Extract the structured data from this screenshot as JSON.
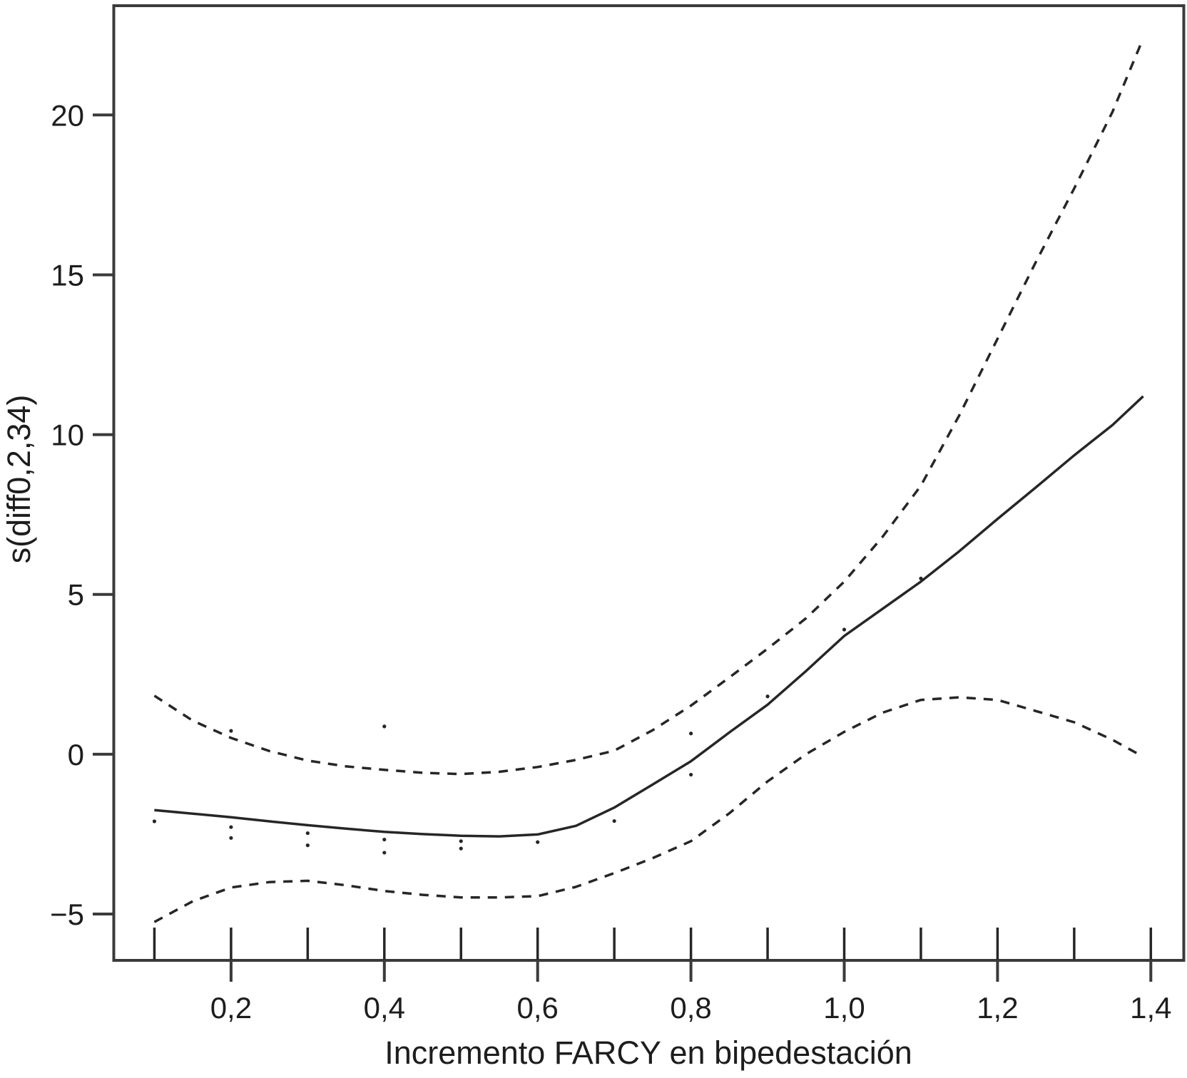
{
  "figure": {
    "kind": "statistical-smooth-plot",
    "background": "#ffffff"
  },
  "chart_data": {
    "type": "line",
    "title": "",
    "xlabel": "Incremento FARCY en bipedestación",
    "ylabel": "s(diff0,2,34)",
    "xlim": [
      0.047,
      1.443
    ],
    "ylim": [
      -6.45,
      23.42
    ],
    "grid": false,
    "legend_position": "none",
    "frame_box": true,
    "line_color": "#262626",
    "axis_color": "#3a3a3a",
    "x_ticks": [
      {
        "v": 0.2,
        "label": "0,2"
      },
      {
        "v": 0.4,
        "label": "0,4"
      },
      {
        "v": 0.6,
        "label": "0,6"
      },
      {
        "v": 0.8,
        "label": "0,8"
      },
      {
        "v": 1.0,
        "label": "1,0"
      },
      {
        "v": 1.2,
        "label": "1,2"
      },
      {
        "v": 1.4,
        "label": "1,4"
      }
    ],
    "y_ticks": [
      {
        "v": -5,
        "label": "−5"
      },
      {
        "v": 0,
        "label": "0"
      },
      {
        "v": 5,
        "label": "5"
      },
      {
        "v": 10,
        "label": "10"
      },
      {
        "v": 15,
        "label": "15"
      },
      {
        "v": 20,
        "label": "20"
      }
    ],
    "rug_x": [
      0.1,
      0.2,
      0.3,
      0.4,
      0.5,
      0.6,
      0.7,
      0.8,
      0.9,
      1.0,
      1.1,
      1.2,
      1.3,
      1.4
    ],
    "series": [
      {
        "name": "fit",
        "style": "solid",
        "points": [
          [
            0.1,
            -1.75
          ],
          [
            0.15,
            -1.86
          ],
          [
            0.2,
            -1.97
          ],
          [
            0.25,
            -2.1
          ],
          [
            0.3,
            -2.22
          ],
          [
            0.35,
            -2.33
          ],
          [
            0.4,
            -2.43
          ],
          [
            0.45,
            -2.5
          ],
          [
            0.5,
            -2.55
          ],
          [
            0.55,
            -2.57
          ],
          [
            0.6,
            -2.51
          ],
          [
            0.65,
            -2.24
          ],
          [
            0.7,
            -1.67
          ],
          [
            0.75,
            -0.95
          ],
          [
            0.8,
            -0.22
          ],
          [
            0.85,
            0.68
          ],
          [
            0.9,
            1.55
          ],
          [
            0.95,
            2.6
          ],
          [
            1.0,
            3.7
          ],
          [
            1.05,
            4.55
          ],
          [
            1.1,
            5.4
          ],
          [
            1.15,
            6.35
          ],
          [
            1.2,
            7.36
          ],
          [
            1.25,
            8.35
          ],
          [
            1.3,
            9.35
          ],
          [
            1.35,
            10.3
          ],
          [
            1.39,
            11.2
          ]
        ]
      },
      {
        "name": "upper-ci",
        "style": "dashed",
        "points": [
          [
            0.1,
            1.83
          ],
          [
            0.15,
            1.05
          ],
          [
            0.2,
            0.51
          ],
          [
            0.25,
            0.1
          ],
          [
            0.3,
            -0.2
          ],
          [
            0.35,
            -0.38
          ],
          [
            0.4,
            -0.49
          ],
          [
            0.45,
            -0.58
          ],
          [
            0.5,
            -0.62
          ],
          [
            0.55,
            -0.55
          ],
          [
            0.6,
            -0.4
          ],
          [
            0.65,
            -0.18
          ],
          [
            0.7,
            0.11
          ],
          [
            0.75,
            0.75
          ],
          [
            0.8,
            1.52
          ],
          [
            0.85,
            2.4
          ],
          [
            0.9,
            3.3
          ],
          [
            0.95,
            4.25
          ],
          [
            1.0,
            5.4
          ],
          [
            1.05,
            6.8
          ],
          [
            1.1,
            8.4
          ],
          [
            1.15,
            10.6
          ],
          [
            1.2,
            13.0
          ],
          [
            1.25,
            15.4
          ],
          [
            1.3,
            17.7
          ],
          [
            1.35,
            20.1
          ],
          [
            1.39,
            22.4
          ]
        ]
      },
      {
        "name": "lower-ci",
        "style": "dashed",
        "points": [
          [
            0.1,
            -5.25
          ],
          [
            0.15,
            -4.6
          ],
          [
            0.2,
            -4.17
          ],
          [
            0.25,
            -4.0
          ],
          [
            0.3,
            -3.96
          ],
          [
            0.35,
            -4.1
          ],
          [
            0.4,
            -4.28
          ],
          [
            0.45,
            -4.4
          ],
          [
            0.5,
            -4.48
          ],
          [
            0.55,
            -4.48
          ],
          [
            0.6,
            -4.44
          ],
          [
            0.65,
            -4.15
          ],
          [
            0.7,
            -3.72
          ],
          [
            0.75,
            -3.25
          ],
          [
            0.8,
            -2.72
          ],
          [
            0.85,
            -1.85
          ],
          [
            0.9,
            -0.85
          ],
          [
            0.95,
            0.0
          ],
          [
            1.0,
            0.7
          ],
          [
            1.05,
            1.3
          ],
          [
            1.1,
            1.7
          ],
          [
            1.15,
            1.78
          ],
          [
            1.2,
            1.7
          ],
          [
            1.25,
            1.35
          ],
          [
            1.3,
            1.0
          ],
          [
            1.35,
            0.45
          ],
          [
            1.39,
            -0.08
          ]
        ]
      }
    ],
    "residual_points": [
      [
        0.1,
        -2.1
      ],
      [
        0.2,
        0.73
      ],
      [
        0.2,
        -2.28
      ],
      [
        0.2,
        -2.62
      ],
      [
        0.3,
        -2.47
      ],
      [
        0.3,
        -2.85
      ],
      [
        0.4,
        0.87
      ],
      [
        0.4,
        -2.67
      ],
      [
        0.4,
        -3.08
      ],
      [
        0.5,
        -2.72
      ],
      [
        0.5,
        -2.95
      ],
      [
        0.6,
        -2.75
      ],
      [
        0.7,
        -2.09
      ],
      [
        0.8,
        0.65
      ],
      [
        0.8,
        -0.64
      ],
      [
        0.9,
        1.81
      ],
      [
        1.0,
        3.9
      ],
      [
        1.1,
        5.5
      ]
    ]
  }
}
